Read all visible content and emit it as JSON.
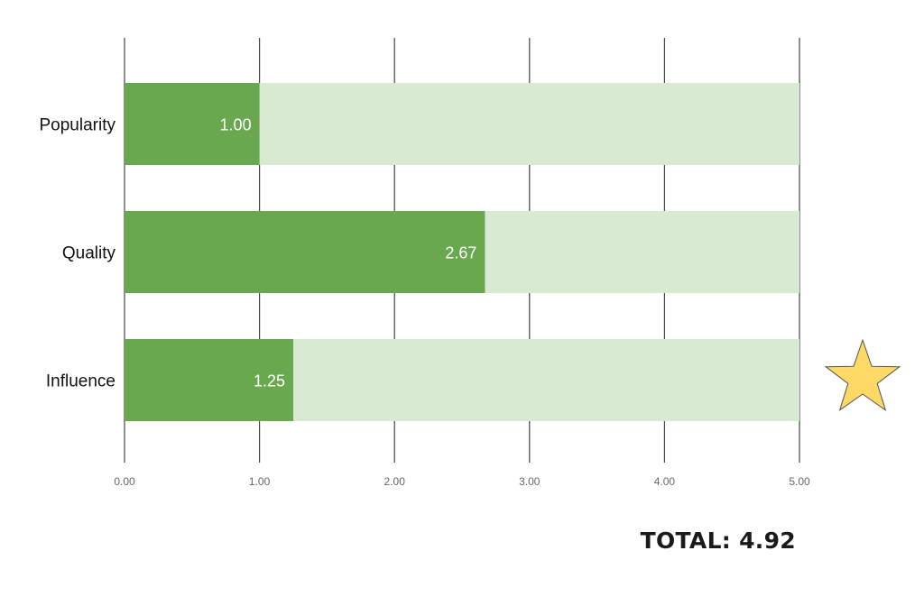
{
  "chart_data": {
    "type": "bar",
    "orientation": "horizontal",
    "categories": [
      "Popularity",
      "Quality",
      "Influence"
    ],
    "values": [
      1.0,
      2.67,
      1.25
    ],
    "value_labels": [
      "1.00",
      "2.67",
      "1.25"
    ],
    "max": 5.0,
    "xlim": [
      0,
      5
    ],
    "x_ticks": [
      "0.00",
      "1.00",
      "2.00",
      "3.00",
      "4.00",
      "5.00"
    ],
    "grid": true,
    "title": "",
    "xlabel": "",
    "ylabel": "",
    "colors": {
      "bar": "#6aa84f",
      "track": "#d9ead3",
      "grid": "#444444",
      "value_label": "#ffffff"
    }
  },
  "summary": {
    "total_text": "TOTAL: 4.92"
  },
  "icons": {
    "marker": "star-icon",
    "marker_color": "#ffd966"
  }
}
